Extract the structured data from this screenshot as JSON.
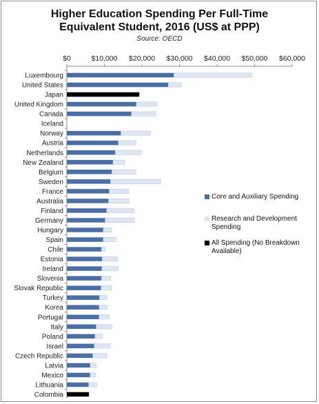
{
  "chart_data": {
    "type": "bar",
    "orientation": "horizontal",
    "stacked": true,
    "title_line1": "Higher Education Spending Per Full-Time",
    "title_line2": "Equivalent Student, 2016 (US$ at PPP)",
    "subtitle": "Source: OECD",
    "xlim": [
      0,
      60000
    ],
    "x_ticks": [
      "$0",
      "$10,000",
      "$20,000",
      "$30,000",
      "$40,000",
      "$50,000",
      "$60,000"
    ],
    "x_tick_values": [
      0,
      10000,
      20000,
      30000,
      40000,
      50000,
      60000
    ],
    "x_axis_position": "top",
    "grid": false,
    "legend_position": "right",
    "categories": [
      "Luxembourg",
      "United States",
      "Japan",
      "United Kingdom",
      "Canada",
      "Iceland",
      "Norway",
      "Austria",
      "Netherlands",
      "New Zealand",
      "Belgium",
      "Sweden",
      "France",
      "Australia",
      "Finland",
      "Germany",
      "Hungary",
      "Spain",
      "Chile",
      "Estonia",
      "Ireland",
      "Slovenia",
      "Slovak Republic",
      "Turkey",
      "Korea",
      "Portugal",
      "Italy",
      "Poland",
      "Israel",
      "Czech Republic",
      "Latvia",
      "Mexico",
      "Lithuania",
      "Colombia"
    ],
    "series": [
      {
        "name": "Core and Auxiliary Spending",
        "color": "#4a6fa5",
        "values": [
          28500,
          27000,
          null,
          18500,
          17200,
          null,
          14400,
          13700,
          12900,
          12300,
          12000,
          11600,
          11300,
          11100,
          10600,
          10200,
          9700,
          9700,
          9200,
          9400,
          9300,
          9200,
          9100,
          8700,
          8600,
          8600,
          7800,
          7500,
          7300,
          6900,
          6200,
          6200,
          5800,
          null
        ]
      },
      {
        "name": "Research and Development Spending",
        "color": "#dde6f2",
        "values": [
          20800,
          3500,
          null,
          5500,
          6500,
          null,
          7900,
          4800,
          6900,
          3100,
          6400,
          13400,
          5200,
          5500,
          7300,
          7800,
          2200,
          3400,
          1000,
          4100,
          4400,
          2500,
          2800,
          2000,
          2100,
          2800,
          4200,
          1900,
          4300,
          3800,
          1600,
          1400,
          2200,
          null
        ]
      },
      {
        "name": "All Spending (No Breakdown Available)",
        "color": "#000000",
        "values": [
          null,
          null,
          19300,
          null,
          null,
          null,
          null,
          null,
          null,
          null,
          null,
          null,
          null,
          null,
          null,
          null,
          null,
          null,
          null,
          null,
          null,
          null,
          null,
          null,
          null,
          null,
          null,
          null,
          null,
          null,
          null,
          null,
          null,
          5900
        ]
      }
    ]
  }
}
